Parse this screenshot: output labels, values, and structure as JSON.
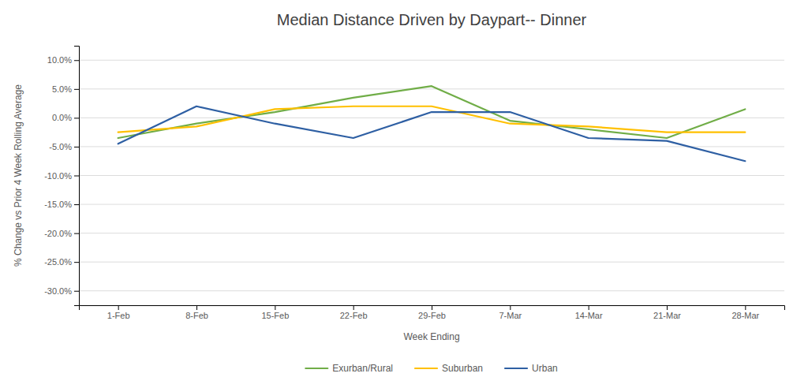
{
  "chart_data": {
    "type": "line",
    "title": "Median Distance Driven by Daypart-- Dinner",
    "xlabel": "Week Ending",
    "ylabel": "% Change vs Prior 4 Week Rolling Average",
    "categories": [
      "1-Feb",
      "8-Feb",
      "15-Feb",
      "22-Feb",
      "29-Feb",
      "7-Mar",
      "14-Mar",
      "21-Mar",
      "28-Mar"
    ],
    "series": [
      {
        "name": "Exurban/Rural",
        "color": "#70ad47",
        "values": [
          -3.5,
          -1.0,
          1.0,
          3.5,
          5.5,
          -0.5,
          -2.0,
          -3.5,
          1.5
        ]
      },
      {
        "name": "Suburban",
        "color": "#ffc000",
        "values": [
          -2.5,
          -1.5,
          1.5,
          2.0,
          2.0,
          -1.0,
          -1.5,
          -2.5,
          -2.5
        ]
      },
      {
        "name": "Urban",
        "color": "#2e5fa3",
        "values": [
          -4.5,
          2.0,
          -1.0,
          -3.5,
          1.0,
          1.0,
          -3.5,
          -4.0,
          -7.5
        ]
      }
    ],
    "ylim": [
      -32.5,
      12.5
    ],
    "yticks": [
      {
        "value": 10.0,
        "label": "10.0%"
      },
      {
        "value": 5.0,
        "label": "5.0%"
      },
      {
        "value": 0.0,
        "label": "0.0%"
      },
      {
        "value": -5.0,
        "label": "-5.0%"
      },
      {
        "value": -10.0,
        "label": "-10.0%"
      },
      {
        "value": -15.0,
        "label": "-15.0%"
      },
      {
        "value": -20.0,
        "label": "-20.0%"
      },
      {
        "value": -25.0,
        "label": "-25.0%"
      },
      {
        "value": -30.0,
        "label": "-30.0%"
      }
    ],
    "grid": true,
    "legend": "bottom"
  }
}
